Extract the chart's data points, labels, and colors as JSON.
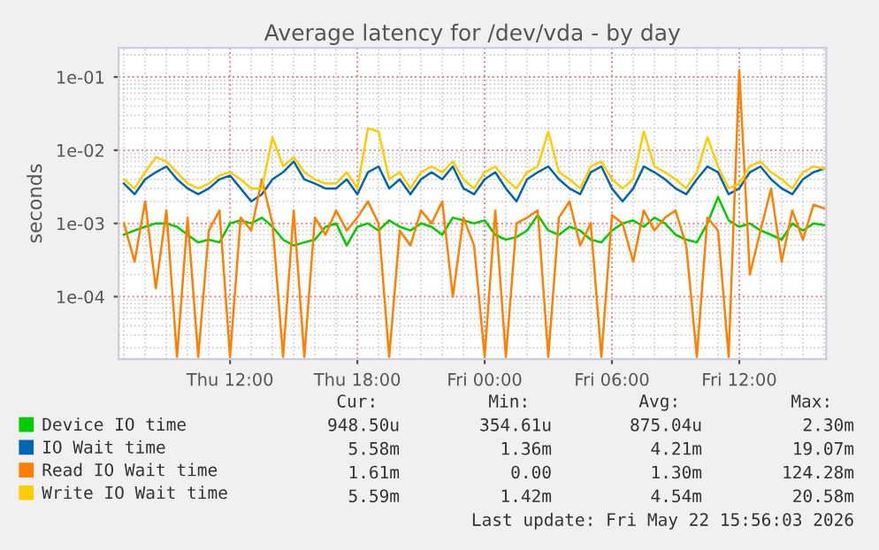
{
  "chart_data": {
    "type": "line",
    "title": "Average latency for /dev/vda - by day",
    "ylabel": "seconds",
    "x": [
      "2026-05-21T07:00",
      "2026-05-21T07:30",
      "2026-05-21T08:00",
      "2026-05-21T08:30",
      "2026-05-21T09:00",
      "2026-05-21T09:30",
      "2026-05-21T10:00",
      "2026-05-21T10:30",
      "2026-05-21T11:00",
      "2026-05-21T11:30",
      "2026-05-21T12:00",
      "2026-05-21T12:30",
      "2026-05-21T13:00",
      "2026-05-21T13:30",
      "2026-05-21T14:00",
      "2026-05-21T14:30",
      "2026-05-21T15:00",
      "2026-05-21T15:30",
      "2026-05-21T16:00",
      "2026-05-21T16:30",
      "2026-05-21T17:00",
      "2026-05-21T17:30",
      "2026-05-21T18:00",
      "2026-05-21T18:30",
      "2026-05-21T19:00",
      "2026-05-21T19:30",
      "2026-05-21T20:00",
      "2026-05-21T20:30",
      "2026-05-21T21:00",
      "2026-05-21T21:30",
      "2026-05-21T22:00",
      "2026-05-21T22:30",
      "2026-05-21T23:00",
      "2026-05-21T23:30",
      "2026-05-22T00:00",
      "2026-05-22T00:30",
      "2026-05-22T01:00",
      "2026-05-22T01:30",
      "2026-05-22T02:00",
      "2026-05-22T02:30",
      "2026-05-22T03:00",
      "2026-05-22T03:30",
      "2026-05-22T04:00",
      "2026-05-22T04:30",
      "2026-05-22T05:00",
      "2026-05-22T05:30",
      "2026-05-22T06:00",
      "2026-05-22T06:30",
      "2026-05-22T07:00",
      "2026-05-22T07:30",
      "2026-05-22T08:00",
      "2026-05-22T08:30",
      "2026-05-22T09:00",
      "2026-05-22T09:30",
      "2026-05-22T10:00",
      "2026-05-22T10:30",
      "2026-05-22T11:00",
      "2026-05-22T11:30",
      "2026-05-22T12:00",
      "2026-05-22T12:30",
      "2026-05-22T13:00",
      "2026-05-22T13:30",
      "2026-05-22T14:00",
      "2026-05-22T14:30",
      "2026-05-22T15:00",
      "2026-05-22T15:30",
      "2026-05-22T16:00"
    ],
    "series": [
      {
        "name": "Device IO time",
        "color": "#00cc00",
        "values": [
          0.0007,
          0.0008,
          0.0009,
          0.001,
          0.001,
          0.0009,
          0.0007,
          0.00055,
          0.0006,
          0.00055,
          0.001,
          0.0011,
          0.001,
          0.0012,
          0.0009,
          0.0006,
          0.0005,
          0.00055,
          0.0006,
          0.0009,
          0.001,
          0.0005,
          0.0009,
          0.001,
          0.0008,
          0.0011,
          0.0009,
          0.0008,
          0.001,
          0.0009,
          0.0007,
          0.0012,
          0.0011,
          0.001,
          0.0011,
          0.0007,
          0.0006,
          0.00065,
          0.0008,
          0.0013,
          0.0008,
          0.0007,
          0.0009,
          0.0008,
          0.0006,
          0.00055,
          0.0008,
          0.001,
          0.0011,
          0.0009,
          0.0012,
          0.001,
          0.0007,
          0.0006,
          0.00055,
          0.001,
          0.0023,
          0.0011,
          0.0009,
          0.001,
          0.0008,
          0.0007,
          0.0006,
          0.001,
          0.0008,
          0.001,
          0.00095
        ]
      },
      {
        "name": "IO Wait time",
        "color": "#0066b3",
        "values": [
          0.0035,
          0.0025,
          0.004,
          0.005,
          0.006,
          0.004,
          0.003,
          0.0025,
          0.003,
          0.004,
          0.0045,
          0.003,
          0.002,
          0.0025,
          0.004,
          0.005,
          0.007,
          0.004,
          0.0035,
          0.003,
          0.003,
          0.004,
          0.0025,
          0.005,
          0.006,
          0.003,
          0.004,
          0.0025,
          0.004,
          0.005,
          0.004,
          0.006,
          0.003,
          0.0025,
          0.004,
          0.005,
          0.003,
          0.002,
          0.004,
          0.005,
          0.006,
          0.004,
          0.003,
          0.0025,
          0.005,
          0.006,
          0.003,
          0.002,
          0.003,
          0.006,
          0.005,
          0.004,
          0.003,
          0.0025,
          0.004,
          0.006,
          0.005,
          0.0025,
          0.003,
          0.005,
          0.006,
          0.004,
          0.003,
          0.0025,
          0.004,
          0.005,
          0.0056
        ]
      },
      {
        "name": "Read IO Wait time",
        "color": "#ff8000",
        "values": [
          0.001,
          0.0003,
          0.002,
          0.00013,
          0.0015,
          1.5e-05,
          0.0012,
          1.5e-05,
          0.0008,
          0.0015,
          1.5e-05,
          0.0012,
          0.0008,
          0.004,
          0.001,
          1.5e-05,
          0.0015,
          1.5e-05,
          0.0012,
          0.0007,
          0.0015,
          0.0008,
          0.0012,
          0.002,
          0.001,
          1.5e-05,
          0.0008,
          0.0005,
          0.0015,
          0.001,
          0.002,
          0.0001,
          0.0012,
          0.0005,
          1.5e-05,
          0.0015,
          1.5e-05,
          0.001,
          0.0012,
          0.0015,
          1.5e-05,
          0.0012,
          0.002,
          0.0005,
          0.001,
          1.5e-05,
          0.0013,
          0.001,
          0.0003,
          0.0015,
          0.0008,
          0.0012,
          0.0015,
          0.0005,
          1.5e-05,
          0.0012,
          0.0008,
          1.5e-05,
          0.12428,
          0.0002,
          0.0008,
          0.003,
          0.0003,
          0.0015,
          0.0006,
          0.0018,
          0.0016
        ]
      },
      {
        "name": "Write IO Wait time",
        "color": "#ffcc00",
        "values": [
          0.004,
          0.003,
          0.005,
          0.008,
          0.007,
          0.005,
          0.0035,
          0.003,
          0.0035,
          0.0045,
          0.005,
          0.004,
          0.003,
          0.003,
          0.015,
          0.006,
          0.008,
          0.005,
          0.004,
          0.0035,
          0.0035,
          0.005,
          0.003,
          0.02,
          0.018,
          0.004,
          0.005,
          0.003,
          0.005,
          0.006,
          0.005,
          0.007,
          0.004,
          0.003,
          0.005,
          0.006,
          0.004,
          0.003,
          0.005,
          0.006,
          0.018,
          0.005,
          0.004,
          0.003,
          0.006,
          0.007,
          0.004,
          0.003,
          0.004,
          0.018,
          0.006,
          0.005,
          0.004,
          0.003,
          0.005,
          0.015,
          0.006,
          0.003,
          0.0035,
          0.006,
          0.007,
          0.005,
          0.004,
          0.003,
          0.005,
          0.006,
          0.0056
        ]
      }
    ],
    "log": "y",
    "xlim": [
      "2026-05-21T06:45",
      "2026-05-22T16:06"
    ],
    "ylim": [
      1.4e-05,
      0.25
    ],
    "xticks": [
      {
        "value": "2026-05-21T12:00",
        "label": "Thu 12:00"
      },
      {
        "value": "2026-05-21T18:00",
        "label": "Thu 18:00"
      },
      {
        "value": "2026-05-22T00:00",
        "label": "Fri 00:00"
      },
      {
        "value": "2026-05-22T06:00",
        "label": "Fri 06:00"
      },
      {
        "value": "2026-05-22T12:00",
        "label": "Fri 12:00"
      }
    ],
    "yticks": [
      {
        "value": 0.0001,
        "label": "1e-04"
      },
      {
        "value": 0.001,
        "label": "1e-03"
      },
      {
        "value": 0.01,
        "label": "1e-02"
      },
      {
        "value": 0.1,
        "label": "1e-01"
      }
    ],
    "grid": true,
    "legend": "bottom",
    "marker": "none",
    "line_style": "solid",
    "annotations": [
      "Cur:",
      "Min:",
      "Avg:",
      "Max:",
      "948.50u",
      "354.61u",
      "875.04u",
      "2.30m",
      "5.58m",
      "1.36m",
      "4.21m",
      "19.07m",
      "1.61m",
      "0.00",
      "1.30m",
      "124.28m",
      "5.59m",
      "1.42m",
      "4.54m",
      "20.58m",
      "Last update: Fri May 22 15:56:03 2026"
    ]
  }
}
